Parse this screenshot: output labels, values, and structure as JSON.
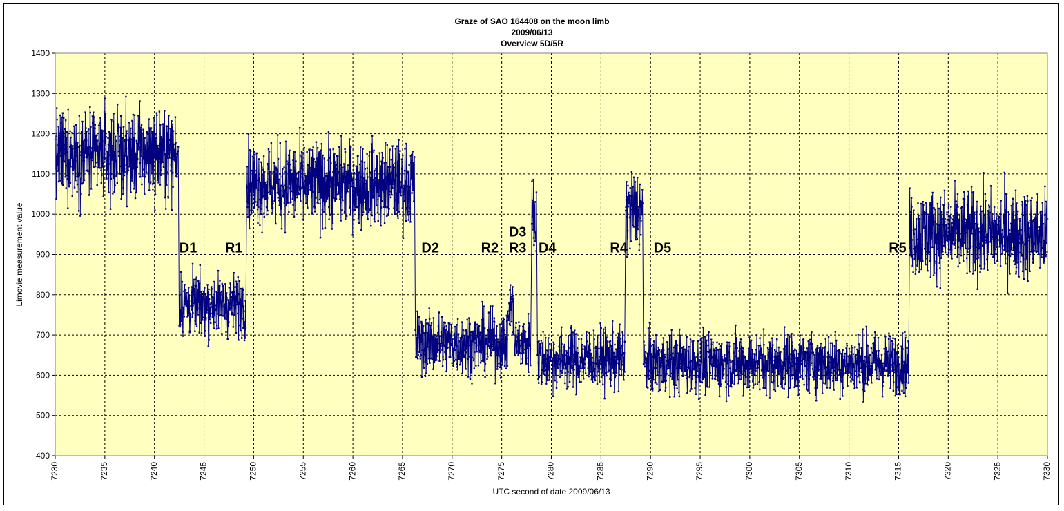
{
  "chart_data": {
    "type": "line",
    "title": [
      "Graze of SAO  164408 on the moon limb",
      "2009/06/13",
      "Overview 5D/5R"
    ],
    "xlabel": "UTC  second of date 2009/06/13",
    "ylabel": "Limovie measurement value",
    "xlim": [
      7230,
      7330
    ],
    "ylim": [
      400,
      1400
    ],
    "x_ticks": [
      "7230",
      "7235",
      "7240",
      "7245",
      "7250",
      "7255",
      "7260",
      "7265",
      "7270",
      "7275",
      "7280",
      "7285",
      "7290",
      "7295",
      "7300",
      "7305",
      "7310",
      "7315",
      "7320",
      "7325",
      "7330"
    ],
    "y_ticks": [
      "400",
      "500",
      "600",
      "700",
      "800",
      "900",
      "1000",
      "1100",
      "1200",
      "1300",
      "1400"
    ],
    "grid": true,
    "plot_background": "#ffffc0",
    "series_color": "#000080",
    "series": [
      {
        "segments": [
          {
            "x_start": 7230.0,
            "x_end": 7242.4,
            "mean": 1150,
            "spread": 55
          },
          {
            "x_start": 7242.5,
            "x_end": 7249.2,
            "mean": 775,
            "spread": 38
          },
          {
            "x_start": 7249.3,
            "x_end": 7266.2,
            "mean": 1075,
            "spread": 52
          },
          {
            "x_start": 7266.3,
            "x_end": 7275.6,
            "mean": 680,
            "spread": 38
          },
          {
            "x_start": 7275.7,
            "x_end": 7276.2,
            "mean": 770,
            "spread": 35
          },
          {
            "x_start": 7276.3,
            "x_end": 7277.9,
            "mean": 680,
            "spread": 35
          },
          {
            "x_start": 7278.0,
            "x_end": 7278.5,
            "mean": 1000,
            "spread": 60
          },
          {
            "x_start": 7278.6,
            "x_end": 7287.4,
            "mean": 640,
            "spread": 38
          },
          {
            "x_start": 7287.5,
            "x_end": 7289.2,
            "mean": 1010,
            "spread": 55
          },
          {
            "x_start": 7289.3,
            "x_end": 7316.0,
            "mean": 630,
            "spread": 38
          },
          {
            "x_start": 7316.1,
            "x_end": 7330.0,
            "mean": 950,
            "spread": 55
          }
        ]
      }
    ],
    "annotations": [
      {
        "text": "D1",
        "x": 7243.4,
        "y": 905
      },
      {
        "text": "R1",
        "x": 7248.0,
        "y": 905
      },
      {
        "text": "D2",
        "x": 7267.8,
        "y": 905
      },
      {
        "text": "R2",
        "x": 7273.8,
        "y": 905
      },
      {
        "text": "D3",
        "x": 7276.6,
        "y": 945
      },
      {
        "text": "R3",
        "x": 7276.6,
        "y": 905
      },
      {
        "text": "D4",
        "x": 7279.6,
        "y": 905
      },
      {
        "text": "R4",
        "x": 7286.8,
        "y": 905
      },
      {
        "text": "D5",
        "x": 7291.2,
        "y": 905
      },
      {
        "text": "R5",
        "x": 7314.9,
        "y": 905
      }
    ]
  }
}
